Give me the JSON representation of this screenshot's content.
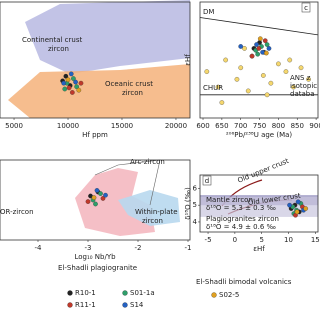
{
  "chart_data": [
    {
      "type": "scatter",
      "x_label": "Hf ppm",
      "xlim": [
        3700,
        21300
      ],
      "xticks": [
        5000,
        10000,
        15000,
        20000
      ],
      "ylim": [
        0,
        1
      ],
      "annotations": [
        "Continental crust",
        "zircon",
        "Oceanic crust",
        "zircon"
      ],
      "series": [
        {
          "color": "#222222",
          "x": [
            9500,
            10200,
            9800
          ],
          "values": [
            0.32,
            0.28,
            0.36
          ]
        },
        {
          "color": "#2e9e6a",
          "x": [
            9900,
            10500,
            10800,
            9700
          ],
          "values": [
            0.3,
            0.34,
            0.27,
            0.25
          ]
        },
        {
          "color": "#c0392b",
          "x": [
            10100,
            11200,
            10400
          ],
          "values": [
            0.26,
            0.3,
            0.22
          ]
        },
        {
          "color": "#2461c2",
          "x": [
            10300,
            9600,
            10700
          ],
          "values": [
            0.38,
            0.3,
            0.31
          ]
        },
        {
          "color": "#e0a020",
          "x": [
            10000,
            11000
          ],
          "values": [
            0.33,
            0.24
          ]
        }
      ]
    },
    {
      "type": "scatter",
      "panel_label": "c",
      "x_label": "²⁰⁶Pb/²³⁸U age (Ma)",
      "y_label": "εHf",
      "xlim": [
        592,
        905
      ],
      "xticks": [
        600,
        650,
        700,
        750,
        800,
        850,
        900
      ],
      "ylim": [
        -6,
        24
      ],
      "annotations": [
        "DM",
        "CHUR",
        "ANS z",
        "isotopic",
        "databa"
      ],
      "reference_lines": [
        {
          "x": [
            592,
            905
          ],
          "values": [
            20,
            15.5
          ]
        },
        {
          "x": [
            592,
            905
          ],
          "values": [
            0,
            0
          ]
        }
      ],
      "series": [
        {
          "color": "#f5d76e",
          "x": [
            610,
            640,
            660,
            690,
            700,
            720,
            730,
            760,
            780,
            800,
            820,
            840,
            860,
            880,
            650,
            710,
            770,
            830
          ],
          "values": [
            6,
            2,
            9,
            4,
            7,
            1,
            10,
            5,
            3,
            8,
            6,
            2,
            7,
            4,
            -2,
            12,
            0,
            9
          ]
        },
        {
          "color": "#222222",
          "x": [
            735,
            750,
            762
          ],
          "values": [
            12,
            13.5,
            11
          ]
        },
        {
          "color": "#2e9e6a",
          "x": [
            740,
            755,
            770,
            745
          ],
          "values": [
            11.5,
            12.5,
            13,
            10.5
          ]
        },
        {
          "color": "#c0392b",
          "x": [
            730,
            748,
            765
          ],
          "values": [
            10,
            12,
            14
          ]
        },
        {
          "color": "#2461c2",
          "x": [
            742,
            758,
            775,
            700
          ],
          "values": [
            13,
            11,
            12,
            12.5
          ]
        },
        {
          "color": "#e0a020",
          "x": [
            752,
            768
          ],
          "values": [
            14.5,
            10.8
          ]
        }
      ]
    },
    {
      "type": "scatter",
      "x_label": "Log₁₀ Nb/Yb",
      "xlim": [
        -4.76,
        -0.96
      ],
      "xticks": [
        -4,
        -3,
        -2,
        -1
      ],
      "ylim": [
        0,
        1
      ],
      "annotations": [
        "Arc-zircon",
        "OR-zircon",
        "Within-plate",
        "zircon"
      ],
      "series": [
        {
          "color": "#222222",
          "x": [
            -2.95,
            -2.8
          ],
          "values": [
            0.55,
            0.6
          ]
        },
        {
          "color": "#2e9e6a",
          "x": [
            -2.9,
            -2.75,
            -2.85
          ],
          "values": [
            0.5,
            0.58,
            0.45
          ]
        },
        {
          "color": "#c0392b",
          "x": [
            -3.0,
            -2.7
          ],
          "values": [
            0.48,
            0.52
          ]
        },
        {
          "color": "#2461c2",
          "x": [
            -2.82,
            -2.65
          ],
          "values": [
            0.62,
            0.56
          ]
        },
        {
          "color": "#e0a020",
          "x": [
            -2.88
          ],
          "values": [
            0.53
          ]
        }
      ]
    },
    {
      "type": "scatter",
      "panel_label": "d",
      "x_label": "εHf",
      "y_label": "δ¹⁸O (‰)",
      "xlim": [
        -6.5,
        15.5
      ],
      "xticks": [
        -5,
        0,
        5,
        10,
        15
      ],
      "ylim": [
        3.4,
        6.8
      ],
      "yticks": [
        4,
        5,
        6
      ],
      "annotations": [
        "Old upper crust",
        "Old lower crust",
        "Mantle zircon",
        "δ¹⁸O = 5.3 ± 0.3 ‰",
        "Plagiogranites zircon",
        "δ¹⁸O = 4.9 ± 0.6 ‰"
      ],
      "bands": [
        {
          "color": "#8a85b8",
          "values": [
            5.0,
            5.6
          ]
        },
        {
          "color": "#c9c6de",
          "values": [
            4.3,
            5.5
          ]
        }
      ],
      "series": [
        {
          "color": "#222222",
          "x": [
            10.5,
            11.2,
            12
          ],
          "values": [
            4.8,
            5.0,
            4.6
          ]
        },
        {
          "color": "#2e9e6a",
          "x": [
            10.8,
            11.5,
            12.3,
            11
          ],
          "values": [
            4.9,
            4.7,
            5.1,
            4.5
          ]
        },
        {
          "color": "#c0392b",
          "x": [
            11.3,
            12.6
          ],
          "values": [
            4.4,
            4.9
          ]
        },
        {
          "color": "#2461c2",
          "x": [
            10.2,
            11.8,
            12.8
          ],
          "values": [
            5.0,
            5.2,
            4.7
          ]
        },
        {
          "color": "#e0a020",
          "x": [
            11.6,
            13.2
          ],
          "values": [
            4.6,
            4.8
          ]
        }
      ]
    }
  ],
  "legend": {
    "groups": [
      {
        "title": "El-Shadli plagiogranite",
        "entries": [
          {
            "name": "R10-1",
            "color": "#222222"
          },
          {
            "name": "S01-1a",
            "color": "#2e9e6a"
          },
          {
            "name": "R11-1",
            "color": "#c0392b"
          },
          {
            "name": "S14",
            "color": "#2461c2"
          }
        ]
      },
      {
        "title": "El-Shadli bimodal volcanics",
        "entries": [
          {
            "name": "S02-5",
            "color": "#e0a020"
          }
        ]
      }
    ]
  }
}
